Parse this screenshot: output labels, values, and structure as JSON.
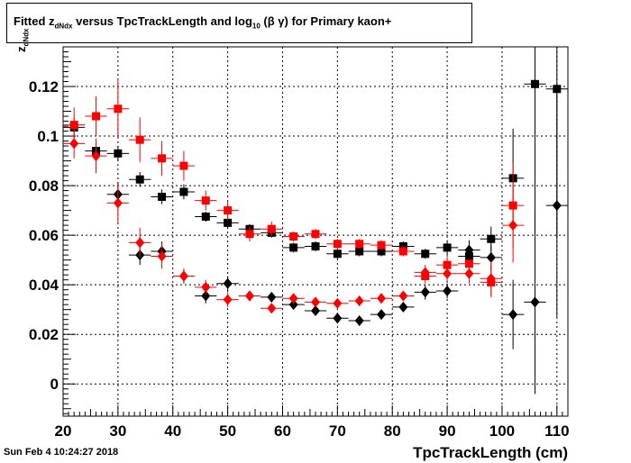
{
  "title": {
    "prefix": "Fitted  z",
    "sub": "dNdx",
    "mid": " versus TpcTrackLength and log",
    "sub2": "10",
    "suffix": "(β γ) for Primary kaon+"
  },
  "datestamp": "Sun Feb  4 10:24:27 2018",
  "chart_data": {
    "type": "scatter",
    "xlabel": "TpcTrackLength (cm)",
    "ylabel": "z",
    "ylabel_sub": "dNdx",
    "xlim": [
      20,
      112
    ],
    "ylim": [
      -0.013,
      0.136
    ],
    "x_ticks": [
      20,
      30,
      40,
      50,
      60,
      70,
      80,
      90,
      100,
      110
    ],
    "y_ticks": [
      0,
      0.02,
      0.04,
      0.06,
      0.08,
      0.1,
      0.12
    ],
    "y_tick_labels": [
      "0",
      "0.02",
      "0.04",
      "0.06",
      "0.08",
      "0.1",
      "0.12"
    ],
    "grid": true,
    "series": [
      {
        "marker": "square",
        "color": "#000000",
        "points": [
          {
            "x": 22,
            "y": 0.1035,
            "e": 0.004
          },
          {
            "x": 26,
            "y": 0.094,
            "e": 0.003
          },
          {
            "x": 30,
            "y": 0.093,
            "e": 0.003
          },
          {
            "x": 34,
            "y": 0.0825,
            "e": 0.003
          },
          {
            "x": 38,
            "y": 0.0755,
            "e": 0.003
          },
          {
            "x": 42,
            "y": 0.0775,
            "e": 0.003
          },
          {
            "x": 46,
            "y": 0.0675,
            "e": 0.002
          },
          {
            "x": 50,
            "y": 0.065,
            "e": 0.002
          },
          {
            "x": 54,
            "y": 0.0625,
            "e": 0.002
          },
          {
            "x": 58,
            "y": 0.061,
            "e": 0.002
          },
          {
            "x": 62,
            "y": 0.055,
            "e": 0.002
          },
          {
            "x": 66,
            "y": 0.0555,
            "e": 0.002
          },
          {
            "x": 70,
            "y": 0.0525,
            "e": 0.002
          },
          {
            "x": 74,
            "y": 0.0535,
            "e": 0.002
          },
          {
            "x": 78,
            "y": 0.0535,
            "e": 0.002
          },
          {
            "x": 82,
            "y": 0.0555,
            "e": 0.002
          },
          {
            "x": 86,
            "y": 0.0525,
            "e": 0.002
          },
          {
            "x": 90,
            "y": 0.055,
            "e": 0.003
          },
          {
            "x": 94,
            "y": 0.0515,
            "e": 0.004
          },
          {
            "x": 98,
            "y": 0.0585,
            "e": 0.005
          },
          {
            "x": 102,
            "y": 0.083,
            "e": 0.02
          },
          {
            "x": 106,
            "y": 0.121,
            "e": 0.06
          },
          {
            "x": 110,
            "y": 0.119,
            "e": 0.06
          }
        ]
      },
      {
        "marker": "square",
        "color": "#ff0000",
        "points": [
          {
            "x": 22,
            "y": 0.1045,
            "e": 0.007
          },
          {
            "x": 26,
            "y": 0.108,
            "e": 0.008
          },
          {
            "x": 30,
            "y": 0.111,
            "e": 0.012
          },
          {
            "x": 34,
            "y": 0.0985,
            "e": 0.009
          },
          {
            "x": 38,
            "y": 0.091,
            "e": 0.007
          },
          {
            "x": 42,
            "y": 0.088,
            "e": 0.006
          },
          {
            "x": 46,
            "y": 0.074,
            "e": 0.004
          },
          {
            "x": 50,
            "y": 0.07,
            "e": 0.004
          },
          {
            "x": 54,
            "y": 0.0605,
            "e": 0.003
          },
          {
            "x": 58,
            "y": 0.0625,
            "e": 0.003
          },
          {
            "x": 62,
            "y": 0.0595,
            "e": 0.002
          },
          {
            "x": 66,
            "y": 0.0605,
            "e": 0.002
          },
          {
            "x": 70,
            "y": 0.0565,
            "e": 0.002
          },
          {
            "x": 74,
            "y": 0.0565,
            "e": 0.002
          },
          {
            "x": 78,
            "y": 0.056,
            "e": 0.002
          },
          {
            "x": 82,
            "y": 0.0535,
            "e": 0.002
          },
          {
            "x": 86,
            "y": 0.0435,
            "e": 0.003
          },
          {
            "x": 90,
            "y": 0.048,
            "e": 0.004
          },
          {
            "x": 94,
            "y": 0.0485,
            "e": 0.005
          },
          {
            "x": 98,
            "y": 0.041,
            "e": 0.006
          },
          {
            "x": 102,
            "y": 0.072,
            "e": 0.017
          }
        ]
      },
      {
        "marker": "diamond",
        "color": "#000000",
        "points": [
          {
            "x": 30,
            "y": 0.0765,
            "e": 0.005
          },
          {
            "x": 34,
            "y": 0.052,
            "e": 0.004
          },
          {
            "x": 38,
            "y": 0.0535,
            "e": 0.004
          },
          {
            "x": 42,
            "y": 0.0435,
            "e": 0.003
          },
          {
            "x": 46,
            "y": 0.0355,
            "e": 0.003
          },
          {
            "x": 50,
            "y": 0.0405,
            "e": 0.003
          },
          {
            "x": 54,
            "y": 0.0355,
            "e": 0.002
          },
          {
            "x": 58,
            "y": 0.035,
            "e": 0.002
          },
          {
            "x": 62,
            "y": 0.032,
            "e": 0.002
          },
          {
            "x": 66,
            "y": 0.0295,
            "e": 0.002
          },
          {
            "x": 70,
            "y": 0.0265,
            "e": 0.002
          },
          {
            "x": 74,
            "y": 0.0255,
            "e": 0.002
          },
          {
            "x": 78,
            "y": 0.028,
            "e": 0.002
          },
          {
            "x": 82,
            "y": 0.031,
            "e": 0.002
          },
          {
            "x": 86,
            "y": 0.037,
            "e": 0.003
          },
          {
            "x": 90,
            "y": 0.0375,
            "e": 0.003
          },
          {
            "x": 94,
            "y": 0.054,
            "e": 0.004
          },
          {
            "x": 98,
            "y": 0.051,
            "e": 0.005
          },
          {
            "x": 102,
            "y": 0.028,
            "e": 0.014
          },
          {
            "x": 106,
            "y": 0.033,
            "e": 0.037
          },
          {
            "x": 110,
            "y": 0.072,
            "e": 0.045
          }
        ]
      },
      {
        "marker": "diamond",
        "color": "#ff0000",
        "points": [
          {
            "x": 22,
            "y": 0.097,
            "e": 0.006
          },
          {
            "x": 26,
            "y": 0.092,
            "e": 0.007
          },
          {
            "x": 30,
            "y": 0.073,
            "e": 0.008
          },
          {
            "x": 34,
            "y": 0.057,
            "e": 0.006
          },
          {
            "x": 38,
            "y": 0.0515,
            "e": 0.005
          },
          {
            "x": 42,
            "y": 0.0435,
            "e": 0.003
          },
          {
            "x": 46,
            "y": 0.039,
            "e": 0.003
          },
          {
            "x": 50,
            "y": 0.034,
            "e": 0.003
          },
          {
            "x": 54,
            "y": 0.0355,
            "e": 0.002
          },
          {
            "x": 58,
            "y": 0.0305,
            "e": 0.002
          },
          {
            "x": 62,
            "y": 0.0345,
            "e": 0.002
          },
          {
            "x": 66,
            "y": 0.033,
            "e": 0.002
          },
          {
            "x": 70,
            "y": 0.0325,
            "e": 0.002
          },
          {
            "x": 74,
            "y": 0.0335,
            "e": 0.002
          },
          {
            "x": 78,
            "y": 0.0345,
            "e": 0.002
          },
          {
            "x": 82,
            "y": 0.0355,
            "e": 0.002
          },
          {
            "x": 86,
            "y": 0.045,
            "e": 0.003
          },
          {
            "x": 90,
            "y": 0.0445,
            "e": 0.003
          },
          {
            "x": 94,
            "y": 0.0445,
            "e": 0.004
          },
          {
            "x": 98,
            "y": 0.0425,
            "e": 0.007
          },
          {
            "x": 102,
            "y": 0.064,
            "e": 0.015
          }
        ]
      }
    ]
  }
}
